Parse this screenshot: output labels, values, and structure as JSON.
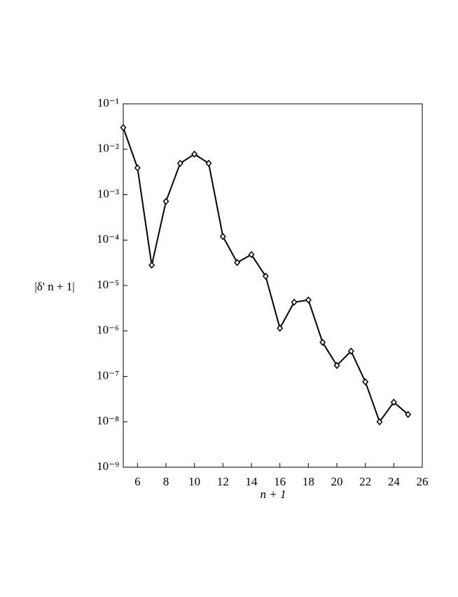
{
  "chart_data": {
    "type": "line",
    "xlabel": "n + 1",
    "ylabel": "|δ' n + 1|",
    "x": [
      5,
      6,
      7,
      8,
      9,
      10,
      11,
      12,
      13,
      14,
      15,
      16,
      17,
      18,
      19,
      20,
      21,
      22,
      23,
      24,
      25
    ],
    "series": [
      {
        "color": "#000000",
        "values": [
          0.03,
          0.0039,
          2.8e-05,
          0.00071,
          0.0049,
          0.0078,
          0.0049,
          0.00012,
          3.2e-05,
          4.8e-05,
          1.6e-05,
          1.15e-06,
          4.3e-06,
          4.8e-06,
          5.6e-07,
          1.74e-07,
          3.6e-07,
          7.6e-08,
          1e-08,
          2.7e-08,
          1.45e-08
        ]
      }
    ],
    "xlim": [
      5,
      26
    ],
    "xticks": [
      6,
      8,
      10,
      12,
      14,
      16,
      18,
      20,
      22,
      24,
      26
    ],
    "ylim": [
      1e-09,
      0.1
    ],
    "log_y": true,
    "yticks": [
      {
        "value": 0.1,
        "label": "10⁻¹"
      },
      {
        "value": 0.01,
        "label": "10⁻²"
      },
      {
        "value": 0.001,
        "label": "10⁻³"
      },
      {
        "value": 0.0001,
        "label": "10⁻⁴"
      },
      {
        "value": 1e-05,
        "label": "10⁻⁵"
      },
      {
        "value": 1e-06,
        "label": "10⁻⁶"
      },
      {
        "value": 1e-07,
        "label": "10⁻⁷"
      },
      {
        "value": 1e-08,
        "label": "10⁻⁸"
      },
      {
        "value": 1e-09,
        "label": "10⁻⁹"
      }
    ]
  }
}
